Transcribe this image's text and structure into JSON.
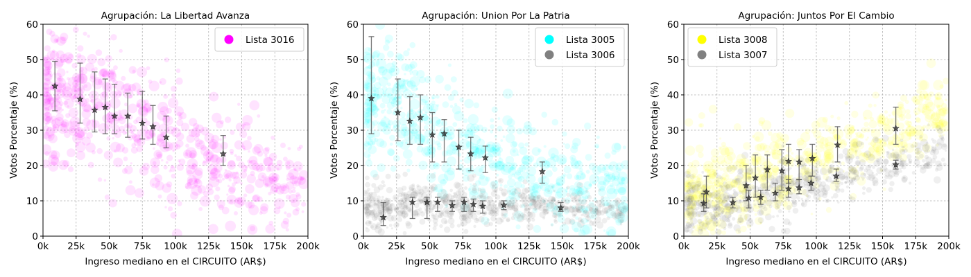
{
  "figure": {
    "xlabel": "Ingreso mediano en el CIRCUITO (AR$)",
    "ylabel": "Votos Porcentaje (%)",
    "xlim": [
      0,
      200000
    ],
    "ylim": [
      0,
      60
    ],
    "x_ticks": [
      0,
      25000,
      50000,
      75000,
      100000,
      125000,
      150000,
      175000,
      200000
    ],
    "x_tick_labels": [
      "0k",
      "25k",
      "50k",
      "75k",
      "100k",
      "125k",
      "150k",
      "175k",
      "200k"
    ],
    "y_ticks": [
      0,
      10,
      20,
      30,
      40,
      50,
      60
    ],
    "y_tick_labels": [
      "0",
      "10",
      "20",
      "30",
      "40",
      "50",
      "60"
    ],
    "grid": true,
    "marker_color": "#333333"
  },
  "chart_data": [
    {
      "type": "scatter",
      "title": "Agrupación: La Libertad Avanza",
      "legend_position": "top-right",
      "series": [
        {
          "name": "Lista 3016",
          "color": "#ff00ff",
          "scatter_cloud": {
            "center": [
              [
                30000,
                40
              ],
              [
                50000,
                34
              ],
              [
                70000,
                31
              ],
              [
                90000,
                27
              ],
              [
                110000,
                24
              ],
              [
                140000,
                19
              ],
              [
                180000,
                15
              ]
            ],
            "spread_y": 9
          },
          "binned_means": [
            {
              "x": 9000,
              "y": 42.5,
              "err": [
                35.5,
                49.5
              ]
            },
            {
              "x": 28000,
              "y": 38.8,
              "err": [
                32,
                49
              ]
            },
            {
              "x": 39000,
              "y": 35.7,
              "err": [
                29.5,
                46.5
              ]
            },
            {
              "x": 47000,
              "y": 36.5,
              "err": [
                29,
                44.5
              ]
            },
            {
              "x": 54000,
              "y": 34,
              "err": [
                29,
                43
              ]
            },
            {
              "x": 64000,
              "y": 34,
              "err": [
                28,
                40.5
              ]
            },
            {
              "x": 75000,
              "y": 32,
              "err": [
                27.5,
                41
              ]
            },
            {
              "x": 83000,
              "y": 31,
              "err": [
                26,
                37
              ]
            },
            {
              "x": 93000,
              "y": 28,
              "err": [
                25,
                34
              ]
            },
            {
              "x": 136000,
              "y": 23.3,
              "err": [
                20,
                28.5
              ]
            }
          ]
        }
      ]
    },
    {
      "type": "scatter",
      "title": "Agrupación: Union Por La Patria",
      "legend_position": "top-right",
      "series": [
        {
          "name": "Lista 3005",
          "color": "#00ffff",
          "scatter_cloud": {
            "center": [
              [
                20000,
                38
              ],
              [
                40000,
                33
              ],
              [
                60000,
                29
              ],
              [
                80000,
                25
              ],
              [
                100000,
                21
              ],
              [
                130000,
                17
              ],
              [
                170000,
                13
              ]
            ],
            "spread_y": 8
          },
          "binned_means": [
            {
              "x": 6000,
              "y": 39,
              "err": [
                29,
                56.5
              ]
            },
            {
              "x": 26000,
              "y": 35,
              "err": [
                27,
                44.5
              ]
            },
            {
              "x": 35000,
              "y": 32.6,
              "err": [
                26,
                39.5
              ]
            },
            {
              "x": 43000,
              "y": 33.6,
              "err": [
                26,
                40
              ]
            },
            {
              "x": 52000,
              "y": 28.7,
              "err": [
                21,
                35
              ]
            },
            {
              "x": 61000,
              "y": 29,
              "err": [
                21,
                33
              ]
            },
            {
              "x": 72000,
              "y": 25.2,
              "err": [
                19,
                30
              ]
            },
            {
              "x": 81000,
              "y": 23.3,
              "err": [
                18.5,
                28
              ]
            },
            {
              "x": 92000,
              "y": 22.2,
              "err": [
                18,
                25.5
              ]
            },
            {
              "x": 135000,
              "y": 18.3,
              "err": [
                15,
                21
              ]
            }
          ]
        },
        {
          "name": "Lista 3006",
          "color": "#808080",
          "scatter_cloud": {
            "center": [
              [
                20000,
                8
              ],
              [
                50000,
                9
              ],
              [
                80000,
                9
              ],
              [
                110000,
                8.5
              ],
              [
                150000,
                8
              ],
              [
                190000,
                7
              ]
            ],
            "spread_y": 3
          },
          "binned_means": [
            {
              "x": 15000,
              "y": 5.3,
              "err": [
                3,
                9.5
              ]
            },
            {
              "x": 37000,
              "y": 9.6,
              "err": [
                5,
                11
              ]
            },
            {
              "x": 48000,
              "y": 9.6,
              "err": [
                5,
                11
              ]
            },
            {
              "x": 56000,
              "y": 9.6,
              "err": [
                7,
                11
              ]
            },
            {
              "x": 67000,
              "y": 8.7,
              "err": [
                7,
                10
              ]
            },
            {
              "x": 76000,
              "y": 9.6,
              "err": [
                7,
                11
              ]
            },
            {
              "x": 83000,
              "y": 9,
              "err": [
                7,
                10.5
              ]
            },
            {
              "x": 90000,
              "y": 8.5,
              "err": [
                6.5,
                10
              ]
            },
            {
              "x": 106000,
              "y": 8.8,
              "err": [
                7.5,
                10
              ]
            },
            {
              "x": 149000,
              "y": 8,
              "err": [
                7,
                9.5
              ]
            }
          ]
        }
      ]
    },
    {
      "type": "scatter",
      "title": "Agrupación: Juntos Por El Cambio",
      "legend_position": "top-left",
      "series": [
        {
          "name": "Lista 3008",
          "color": "#ffff00",
          "scatter_cloud": {
            "center": [
              [
                20000,
                11
              ],
              [
                50000,
                16
              ],
              [
                80000,
                20
              ],
              [
                110000,
                23
              ],
              [
                150000,
                28
              ],
              [
                190000,
                35
              ]
            ],
            "spread_y": 6
          },
          "binned_means": [
            {
              "x": 17000,
              "y": 12.5,
              "err": [
                8,
                17
              ]
            },
            {
              "x": 47000,
              "y": 14.3,
              "err": [
                10,
                20
              ]
            },
            {
              "x": 54000,
              "y": 16.5,
              "err": [
                11,
                23
              ]
            },
            {
              "x": 63000,
              "y": 18.8,
              "err": [
                13,
                23
              ]
            },
            {
              "x": 74000,
              "y": 18.5,
              "err": [
                13,
                24.5
              ]
            },
            {
              "x": 79000,
              "y": 21.2,
              "err": [
                15,
                26
              ]
            },
            {
              "x": 87000,
              "y": 21,
              "err": [
                16,
                24.5
              ]
            },
            {
              "x": 97000,
              "y": 22,
              "err": [
                17,
                26
              ]
            },
            {
              "x": 116000,
              "y": 25.8,
              "err": [
                21,
                31
              ]
            },
            {
              "x": 160000,
              "y": 30.5,
              "err": [
                26,
                36.5
              ]
            }
          ]
        },
        {
          "name": "Lista 3007",
          "color": "#808080",
          "scatter_cloud": {
            "center": [
              [
                20000,
                9
              ],
              [
                50000,
                11
              ],
              [
                80000,
                13
              ],
              [
                110000,
                16
              ],
              [
                150000,
                20
              ],
              [
                190000,
                24
              ]
            ],
            "spread_y": 4
          },
          "binned_means": [
            {
              "x": 15000,
              "y": 9.3,
              "err": [
                7,
                12
              ]
            },
            {
              "x": 37000,
              "y": 9.5,
              "err": [
                8,
                11
              ]
            },
            {
              "x": 49000,
              "y": 10.8,
              "err": [
                8,
                13
              ]
            },
            {
              "x": 58000,
              "y": 11,
              "err": [
                9,
                13
              ]
            },
            {
              "x": 69000,
              "y": 12.2,
              "err": [
                10,
                15
              ]
            },
            {
              "x": 79000,
              "y": 13.4,
              "err": [
                11,
                16
              ]
            },
            {
              "x": 87000,
              "y": 13.7,
              "err": [
                12,
                16
              ]
            },
            {
              "x": 96000,
              "y": 15,
              "err": [
                13,
                17
              ]
            },
            {
              "x": 115000,
              "y": 17,
              "err": [
                15.5,
                19
              ]
            },
            {
              "x": 160000,
              "y": 20.2,
              "err": [
                19,
                21.5
              ]
            }
          ]
        }
      ]
    }
  ]
}
